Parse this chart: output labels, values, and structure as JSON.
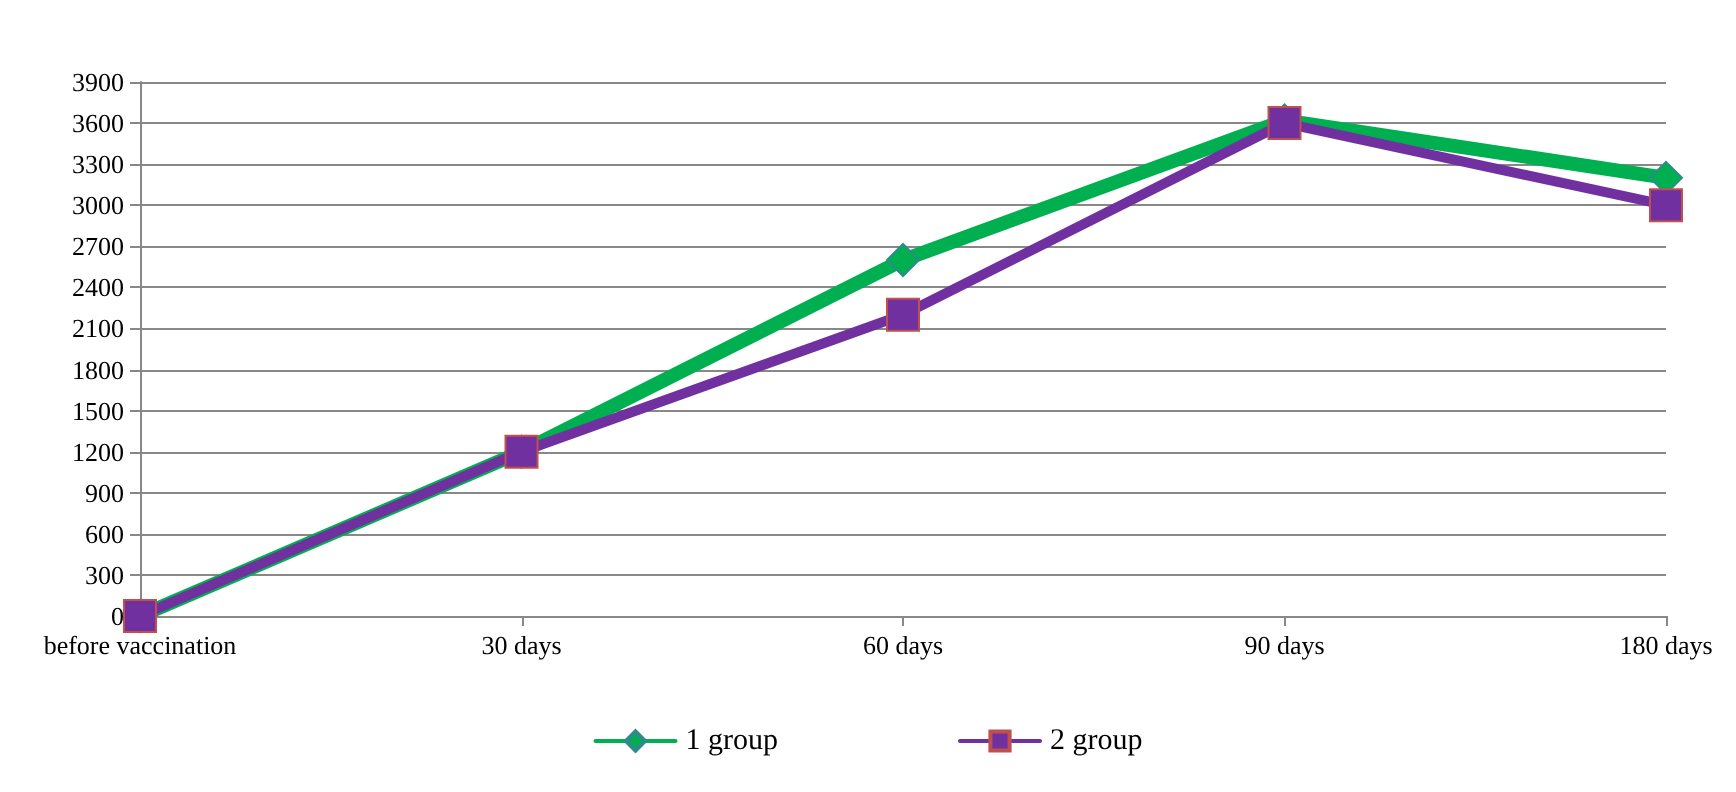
{
  "chart_data": {
    "type": "line",
    "categories": [
      "before vaccination",
      "30 days",
      "60 days",
      "90 days",
      "180 days"
    ],
    "series": [
      {
        "name": "1 group",
        "color": "#00b050",
        "marker": "diamond",
        "values": [
          0,
          1200,
          2600,
          3620,
          3200
        ]
      },
      {
        "name": "2 group",
        "color": "#7030a0",
        "marker": "square",
        "values": [
          0,
          1200,
          2200,
          3600,
          3000
        ]
      }
    ],
    "ylim": [
      0,
      3900
    ],
    "yticks": [
      0,
      300,
      600,
      900,
      1200,
      1500,
      1800,
      2100,
      2400,
      2700,
      3000,
      3300,
      3600,
      3900
    ],
    "grid": "y",
    "legend": "bottom"
  }
}
